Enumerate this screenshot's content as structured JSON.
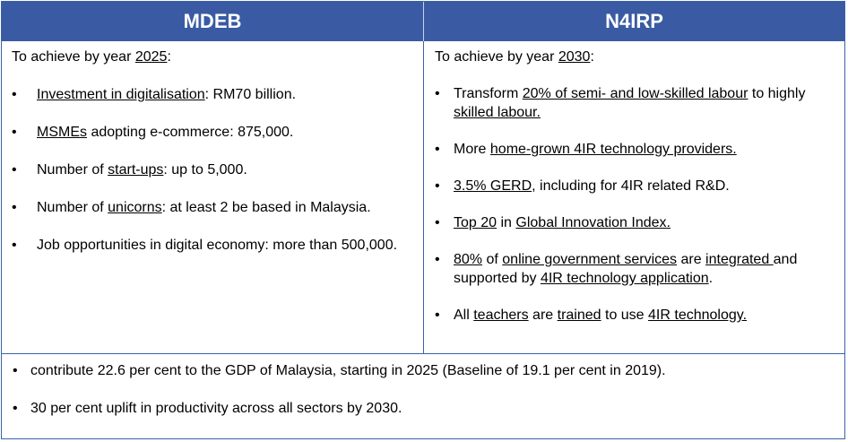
{
  "headers": {
    "left": "MDEB",
    "right": "N4IRP"
  },
  "mdeb": {
    "intro": {
      "prefix": "To achieve by year ",
      "year": "2025",
      "suffix": ":"
    },
    "items": [
      {
        "u": "Investment in digitalisation",
        "rest": ": RM70 billion."
      },
      {
        "u": "MSMEs",
        "rest": " adopting e-commerce: 875,000."
      },
      {
        "pre": "Number of ",
        "u": "start-ups",
        "rest": ":  up to 5,000."
      },
      {
        "pre": "Number of ",
        "u": "unicorns",
        "rest": ":  at least 2 be based in Malaysia."
      },
      {
        "text": "Job opportunities in digital economy:  more than 500,000."
      }
    ]
  },
  "n4irp": {
    "intro": {
      "prefix": "To achieve by year ",
      "year": "2030",
      "suffix": ":"
    },
    "item1": {
      "pre": "Transform ",
      "u1": "20% of semi- and low-skilled labour",
      "mid": " to highly ",
      "u2": "skilled labour."
    },
    "item2": {
      "pre": "More ",
      "u": "home-grown 4IR technology providers."
    },
    "item3": {
      "u": "3.5% GERD",
      "rest": ", including for 4IR related R&D."
    },
    "item4": {
      "u1": "Top 20",
      "mid": " in ",
      "u2": "Global Innovation Index."
    },
    "item5": {
      "u1": "80%",
      "t1": " of ",
      "u2": "online government services",
      "t2": " are ",
      "u3": "integrated ",
      "t3": "and supported by ",
      "u4": "4IR technology application",
      "t4": "."
    },
    "item6": {
      "pre": "All ",
      "u1": "teachers",
      "t1": " are ",
      "u2": "trained",
      "t2": " to use ",
      "u3": "4IR technology."
    }
  },
  "bottom": {
    "items": [
      "contribute 22.6 per cent to the GDP of Malaysia, starting in 2025 (Baseline of 19.1 per cent in 2019).",
      "30 per cent uplift in productivity across all sectors by 2030."
    ]
  }
}
